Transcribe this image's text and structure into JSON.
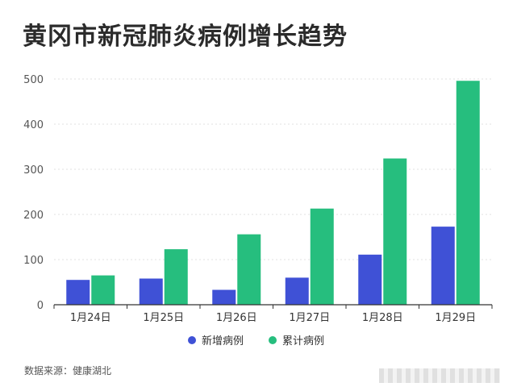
{
  "title": "黄冈市新冠肺炎病例增长趋势",
  "source": "数据来源：健康湖北",
  "colors": {
    "new": "#3f51d6",
    "total": "#26be7e",
    "grid": "#e0e0e0",
    "axis": "#333333",
    "tick": "#555555"
  },
  "chart_data": {
    "type": "bar",
    "categories": [
      "1月24日",
      "1月25日",
      "1月26日",
      "1月27日",
      "1月28日",
      "1月29日"
    ],
    "series": [
      {
        "name": "新增病例",
        "values": [
          55,
          58,
          33,
          60,
          111,
          173
        ]
      },
      {
        "name": "累计病例",
        "values": [
          65,
          123,
          156,
          213,
          324,
          496
        ]
      }
    ],
    "title": "黄冈市新冠肺炎病例增长趋势",
    "xlabel": "",
    "ylabel": "",
    "ylim": [
      0,
      500
    ],
    "yticks": [
      0,
      100,
      200,
      300,
      400,
      500
    ],
    "grid": true,
    "legend": "bottom-center"
  }
}
